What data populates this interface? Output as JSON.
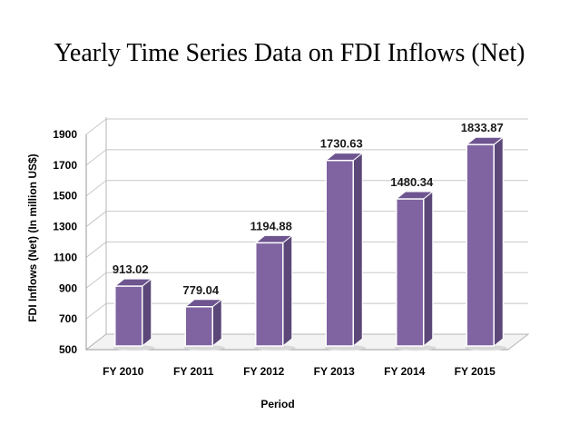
{
  "chart_data": {
    "type": "bar",
    "title": "Yearly Time Series Data on FDI Inflows (Net)",
    "xlabel": "Period",
    "ylabel": "FDI Inflows (Net) (In million US$)",
    "categories": [
      "FY 2010",
      "FY 2011",
      "FY 2012",
      "FY 2013",
      "FY 2014",
      "FY 2015"
    ],
    "series": [
      {
        "name": "FDI Inflows (Net)",
        "values": [
          913.02,
          779.04,
          1194.88,
          1730.63,
          1480.34,
          1833.87
        ]
      }
    ],
    "data_labels": [
      "913.02",
      "779.04",
      "1194.88",
      "1730.63",
      "1480.34",
      "1833.87"
    ],
    "yticks": [
      500,
      700,
      900,
      1100,
      1300,
      1500,
      1700,
      1900
    ],
    "ylim": [
      500,
      1900
    ],
    "grid": true,
    "bar_color": "#8064a2",
    "bar_side_color": "#5b4778",
    "bar_top_color": "#6e5590"
  }
}
